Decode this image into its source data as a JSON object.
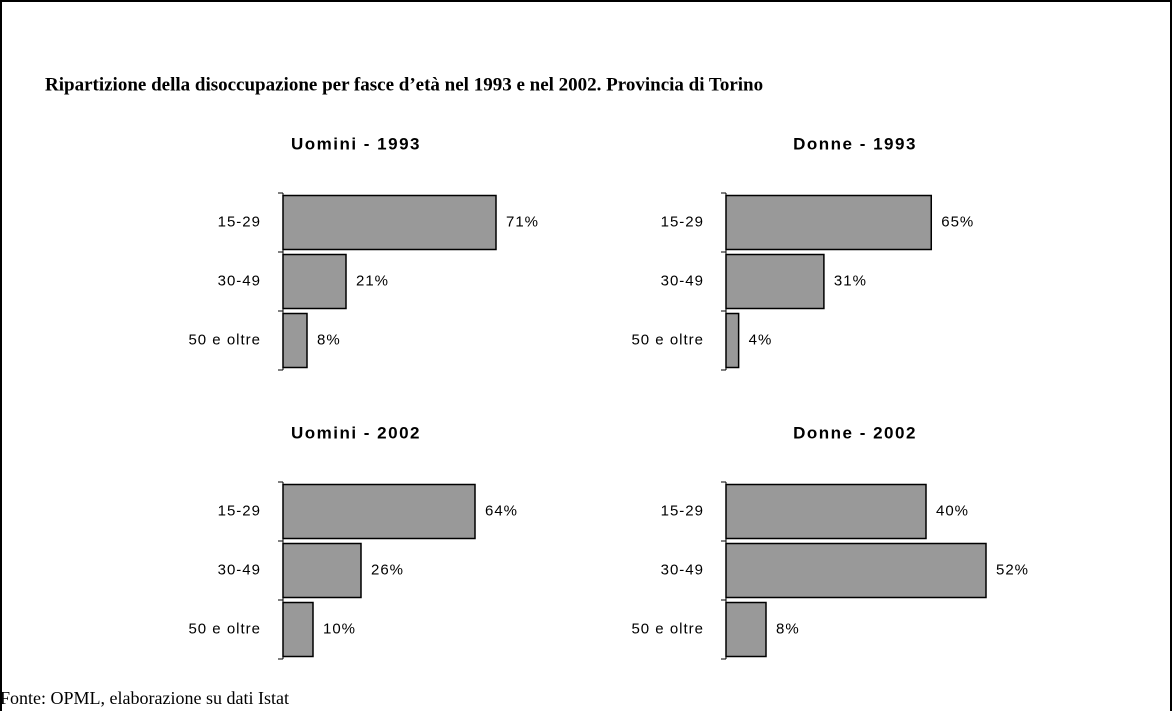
{
  "title": "Ripartizione della disoccupazione per fasce d’età nel 1993 e nel 2002. Provincia di Torino",
  "source": "Fonte: OPML, elaborazione su dati Istat",
  "chart_data": [
    {
      "type": "hbar",
      "title": "Uomini - 1993",
      "categories": [
        "15-29",
        "30-49",
        "50 e oltre"
      ],
      "values": [
        71,
        21,
        8
      ],
      "value_labels": [
        "71%",
        "21%",
        "8%"
      ],
      "xlim": [
        0,
        100
      ],
      "color": "#999999"
    },
    {
      "type": "hbar",
      "title": "Donne - 1993",
      "categories": [
        "15-29",
        "30-49",
        "50 e oltre"
      ],
      "values": [
        65,
        31,
        4
      ],
      "value_labels": [
        "65%",
        "31%",
        "4%"
      ],
      "xlim": [
        0,
        95
      ],
      "color": "#999999"
    },
    {
      "type": "hbar",
      "title": "Uomini - 2002",
      "categories": [
        "15-29",
        "30-49",
        "50 e oltre"
      ],
      "values": [
        64,
        26,
        10
      ],
      "value_labels": [
        "64%",
        "26%",
        "10%"
      ],
      "xlim": [
        0,
        100
      ],
      "color": "#999999"
    },
    {
      "type": "hbar",
      "title": "Donne - 2002",
      "categories": [
        "15-29",
        "30-49",
        "50 e oltre"
      ],
      "values": [
        40,
        52,
        8
      ],
      "value_labels": [
        "40%",
        "52%",
        "8%"
      ],
      "xlim": [
        0,
        60
      ],
      "color": "#999999"
    }
  ]
}
